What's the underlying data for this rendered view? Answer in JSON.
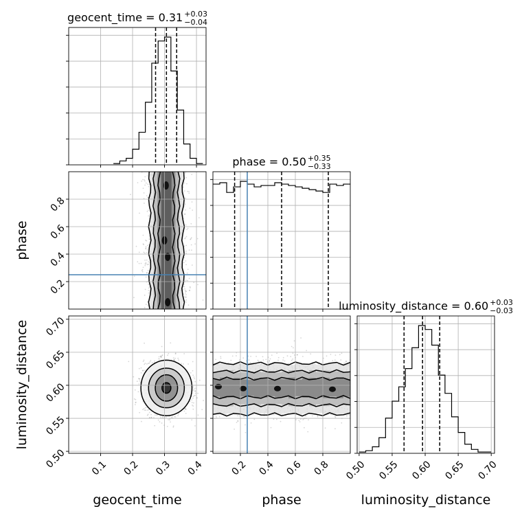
{
  "chart_data": {
    "type": "corner",
    "parameters": [
      "geocent_time",
      "phase",
      "luminosity_distance"
    ],
    "axis_labels": {
      "geocent_time": "geocent_time",
      "phase": "phase",
      "luminosity_distance": "luminosity_distance"
    },
    "ranges": {
      "geocent_time": [
        0.0,
        0.43
      ],
      "phase": [
        0.0,
        1.0
      ],
      "luminosity_distance": [
        0.497,
        0.705
      ]
    },
    "ticks": {
      "geocent_time": {
        "values": [
          0.1,
          0.2,
          0.3,
          0.4
        ],
        "labels": [
          "0.1",
          "0.2",
          "0.3",
          "0.4"
        ]
      },
      "phase": {
        "values": [
          0.2,
          0.4,
          0.6,
          0.8
        ],
        "labels": [
          "0.2",
          "0.4",
          "0.6",
          "0.8"
        ]
      },
      "luminosity_distance": {
        "values": [
          0.5,
          0.55,
          0.6,
          0.65,
          0.7
        ],
        "labels": [
          "0.50",
          "0.55",
          "0.60",
          "0.65",
          "0.70"
        ]
      }
    },
    "titles": {
      "geocent_time": {
        "text": "geocent_time = 0.31",
        "plus": "+0.03",
        "minus": "−0.04"
      },
      "phase": {
        "text": "phase = 0.50",
        "plus": "+0.35",
        "minus": "−0.33"
      },
      "luminosity_distance": {
        "text": "luminosity_distance = 0.60",
        "plus": "+0.03",
        "minus": "−0.03"
      }
    },
    "quantiles": {
      "geocent_time": [
        0.272,
        0.306,
        0.338
      ],
      "phase": [
        0.158,
        0.5,
        0.84
      ],
      "luminosity_distance": [
        0.568,
        0.596,
        0.622
      ]
    },
    "injection": {
      "phase": 0.25
    },
    "histograms": {
      "geocent_time": {
        "edges": [
          0.14,
          0.16,
          0.18,
          0.2,
          0.22,
          0.24,
          0.26,
          0.28,
          0.3,
          0.32,
          0.34,
          0.36,
          0.38,
          0.4,
          0.42
        ],
        "counts": [
          1,
          3,
          5,
          12,
          25,
          48,
          78,
          95,
          98,
          72,
          42,
          16,
          5,
          1
        ]
      },
      "phase": {
        "edges": [
          0.0,
          0.05,
          0.1,
          0.15,
          0.2,
          0.25,
          0.3,
          0.35,
          0.4,
          0.45,
          0.5,
          0.55,
          0.6,
          0.65,
          0.7,
          0.75,
          0.8,
          0.85,
          0.9,
          0.95,
          1.0
        ],
        "counts": [
          90,
          91,
          84,
          88,
          92,
          90,
          88,
          89,
          89,
          91,
          90,
          89,
          88,
          87,
          86,
          85,
          84,
          90,
          89,
          90
        ]
      },
      "luminosity_distance": {
        "edges": [
          0.5,
          0.51,
          0.52,
          0.53,
          0.54,
          0.55,
          0.56,
          0.57,
          0.58,
          0.59,
          0.6,
          0.61,
          0.62,
          0.63,
          0.64,
          0.65,
          0.66,
          0.67,
          0.68,
          0.69,
          0.7
        ],
        "counts": [
          1,
          2,
          5,
          12,
          27,
          40,
          51,
          65,
          81,
          98,
          95,
          83,
          60,
          46,
          28,
          16,
          7,
          3,
          1,
          1
        ]
      }
    },
    "panels_2d": [
      {
        "x": "geocent_time",
        "y": "phase",
        "contours": [
          {
            "x_half": [
              0.052,
              0.052
            ],
            "level": "outer"
          },
          {
            "x_half": [
              0.038,
              0.04
            ],
            "level": "mid"
          },
          {
            "x_half": [
              0.023,
              0.024
            ],
            "level": "inner"
          }
        ],
        "center": [
          0.306,
          0.5
        ]
      },
      {
        "x": "geocent_time",
        "y": "luminosity_distance",
        "center": [
          0.306,
          0.596
        ],
        "contours": [
          {
            "rx": 0.08,
            "ry": 0.042
          },
          {
            "rx": 0.056,
            "ry": 0.03
          },
          {
            "rx": 0.035,
            "ry": 0.02
          },
          {
            "rx": 0.014,
            "ry": 0.008
          }
        ]
      },
      {
        "x": "phase",
        "y": "luminosity_distance",
        "contour_bands": [
          {
            "y0": 0.556,
            "y1": 0.633
          },
          {
            "y0": 0.57,
            "y1": 0.621
          },
          {
            "y0": 0.582,
            "y1": 0.61
          }
        ]
      }
    ],
    "grid": true
  }
}
